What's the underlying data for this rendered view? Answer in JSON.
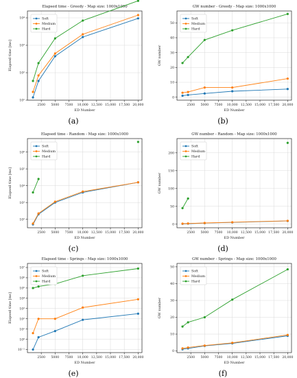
{
  "chart_data": [
    {
      "type": "line",
      "title": "Elapsed time - Greedy - Map size: 1000x1000",
      "xlabel": "ED Number",
      "ylabel": "Elapsed time [ms]",
      "yscale": "log",
      "xlim": [
        0,
        20700
      ],
      "ylim": [
        1.0,
        4.25
      ],
      "xticks": [
        2500,
        5000,
        7500,
        10000,
        12500,
        15000,
        17500,
        20000
      ],
      "xtick_labels": [
        "2500",
        "5000",
        "7500",
        "10,000",
        "12,500",
        "15,000",
        "17,500",
        "20,000"
      ],
      "yticks": [
        1,
        2,
        3,
        4
      ],
      "ytick_labels": [
        "10¹",
        "10²",
        "10³",
        "10⁴"
      ],
      "legend": "upper-left",
      "grid": true,
      "label": "(a)",
      "series": [
        {
          "name": "Soft",
          "color": "#1f77b4",
          "x": [
            1000,
            2000,
            5000,
            10000,
            20000
          ],
          "y": [
            1.1,
            1.7,
            2.6,
            3.3,
            3.98
          ]
        },
        {
          "name": "Medium",
          "color": "#ff7f0e",
          "x": [
            1000,
            2000,
            5000,
            10000,
            20000
          ],
          "y": [
            1.3,
            1.9,
            2.7,
            3.4,
            4.1
          ]
        },
        {
          "name": "Hard",
          "color": "#2ca02c",
          "x": [
            1000,
            2000,
            5000,
            10000,
            20000
          ],
          "y": [
            1.7,
            2.35,
            3.25,
            3.9,
            4.62
          ]
        }
      ]
    },
    {
      "type": "line",
      "title": "GW number - Greedy - Map size: 1000x1000",
      "xlabel": "ED Number",
      "ylabel": "GW number",
      "yscale": "linear",
      "xlim": [
        0,
        20700
      ],
      "ylim": [
        -2,
        58
      ],
      "xticks": [
        2500,
        5000,
        7500,
        10000,
        12500,
        15000,
        17500,
        20000
      ],
      "xtick_labels": [
        "2500",
        "5000",
        "7500",
        "10,000",
        "12,500",
        "15,000",
        "17,500",
        "20,000"
      ],
      "yticks": [
        0,
        10,
        20,
        30,
        40,
        50
      ],
      "ytick_labels": [
        "0",
        "10",
        "20",
        "30",
        "40",
        "50"
      ],
      "legend": "upper-left",
      "grid": true,
      "label": "(b)",
      "series": [
        {
          "name": "Soft",
          "color": "#1f77b4",
          "x": [
            1000,
            2000,
            5000,
            10000,
            20000
          ],
          "y": [
            1,
            1.5,
            2.5,
            4,
            5.5
          ]
        },
        {
          "name": "Medium",
          "color": "#ff7f0e",
          "x": [
            1000,
            2000,
            5000,
            10000,
            20000
          ],
          "y": [
            3,
            3.5,
            6.5,
            6.5,
            12.5
          ]
        },
        {
          "name": "Hard",
          "color": "#2ca02c",
          "x": [
            1000,
            2000,
            5000,
            10000,
            20000
          ],
          "y": [
            23,
            27,
            38.5,
            45,
            56
          ]
        }
      ]
    },
    {
      "type": "line",
      "title": "Elapsed time - Random - Map size: 1000x1000",
      "xlabel": "ED Number",
      "ylabel": "Elapsed time [ms]",
      "yscale": "log",
      "xlim": [
        0,
        20700
      ],
      "ylim": [
        1.5,
        6.8
      ],
      "xticks": [
        2500,
        5000,
        7500,
        10000,
        12500,
        15000,
        17500,
        20000
      ],
      "xtick_labels": [
        "2500",
        "5000",
        "7500",
        "10,000",
        "12,500",
        "15,000",
        "17,500",
        "20,000"
      ],
      "yticks": [
        2,
        3,
        4,
        5,
        6
      ],
      "ytick_labels": [
        "10²",
        "10³",
        "10⁴",
        "10⁵",
        "10⁶"
      ],
      "legend": "upper-left",
      "grid": true,
      "label": "(c)",
      "series": [
        {
          "name": "Soft",
          "color": "#1f77b4",
          "x": [
            1000,
            2000,
            5000,
            10000,
            20000
          ],
          "y": [
            1.7,
            2.3,
            3.0,
            3.6,
            4.2
          ]
        },
        {
          "name": "Medium",
          "color": "#ff7f0e",
          "x": [
            1000,
            2000,
            5000,
            10000,
            20000
          ],
          "y": [
            1.75,
            2.35,
            3.05,
            3.65,
            4.2
          ]
        },
        {
          "name": "Hard",
          "color": "#2ca02c",
          "x": [
            1000,
            2000,
            20000
          ],
          "y": [
            3.6,
            4.4,
            6.6
          ],
          "segments": [
            [
              0,
              1
            ]
          ]
        }
      ]
    },
    {
      "type": "line",
      "title": "GW number - Random - Map size: 1000x1000",
      "xlabel": "ED Number",
      "ylabel": "GW number",
      "yscale": "linear",
      "xlim": [
        0,
        20700
      ],
      "ylim": [
        -10,
        240
      ],
      "xticks": [
        2500,
        5000,
        7500,
        10000,
        12500,
        15000,
        17500,
        20000
      ],
      "xtick_labels": [
        "2500",
        "5000",
        "7500",
        "10,000",
        "12,500",
        "15,000",
        "17,500",
        "20,000"
      ],
      "yticks": [
        0,
        50,
        100,
        150,
        200
      ],
      "ytick_labels": [
        "0",
        "50",
        "100",
        "150",
        "200"
      ],
      "legend": "upper-left",
      "grid": true,
      "label": "(d)",
      "series": [
        {
          "name": "Soft",
          "color": "#1f77b4",
          "x": [
            1000,
            2000,
            5000,
            10000,
            20000
          ],
          "y": [
            1,
            1.5,
            3,
            5,
            9
          ]
        },
        {
          "name": "Medium",
          "color": "#ff7f0e",
          "x": [
            1000,
            2000,
            5000,
            10000,
            20000
          ],
          "y": [
            1.5,
            2,
            3.5,
            5.5,
            9.5
          ]
        },
        {
          "name": "Hard",
          "color": "#2ca02c",
          "x": [
            1000,
            2000,
            20000
          ],
          "y": [
            45,
            72,
            228
          ],
          "segments": [
            [
              0,
              1
            ]
          ]
        }
      ]
    },
    {
      "type": "line",
      "title": "Elapsed time - Springs - Map size: 1000x1000",
      "xlabel": "ED Number",
      "ylabel": "Elapsed time [ms]",
      "yscale": "log",
      "xlim": [
        0,
        20700
      ],
      "ylim": [
        -1.3,
        7.4
      ],
      "xticks": [
        2500,
        5000,
        7500,
        10000,
        12500,
        15000,
        17500,
        20000
      ],
      "xtick_labels": [
        "2500",
        "5000",
        "7500",
        "10,000",
        "12,500",
        "15,000",
        "17,500",
        "20,000"
      ],
      "yticks": [
        -1,
        0,
        1,
        2,
        3,
        4,
        5,
        6,
        7
      ],
      "ytick_labels": [
        "10⁻¹",
        "10⁰",
        "10¹",
        "10²",
        "10³",
        "10⁴",
        "10⁵",
        "10⁶",
        "10⁷"
      ],
      "legend": "upper-left",
      "grid": true,
      "label": "(e)",
      "series": [
        {
          "name": "Soft",
          "color": "#1f77b4",
          "x": [
            1000,
            2000,
            5000,
            10000,
            20000
          ],
          "y": [
            -1.0,
            0.2,
            0.8,
            1.9,
            2.5
          ]
        },
        {
          "name": "Medium",
          "color": "#ff7f0e",
          "x": [
            1000,
            2000,
            5000,
            10000,
            20000
          ],
          "y": [
            0.6,
            2.0,
            2.0,
            3.1,
            3.9
          ]
        },
        {
          "name": "Hard",
          "color": "#2ca02c",
          "x": [
            1000,
            2000,
            5000,
            10000,
            20000
          ],
          "y": [
            5.0,
            5.15,
            5.4,
            6.2,
            6.9
          ]
        }
      ]
    },
    {
      "type": "line",
      "title": "GW number - Springs - Map size: 1000x1000",
      "xlabel": "ED Number",
      "ylabel": "GW number",
      "yscale": "linear",
      "xlim": [
        0,
        20700
      ],
      "ylim": [
        -1,
        52
      ],
      "xticks": [
        2500,
        5000,
        7500,
        10000,
        12500,
        15000,
        17500,
        20000
      ],
      "xtick_labels": [
        "2500",
        "5000",
        "7500",
        "10,000",
        "12,500",
        "15,000",
        "17,500",
        "20,000"
      ],
      "yticks": [
        0,
        10,
        20,
        30,
        40,
        50
      ],
      "ytick_labels": [
        "0",
        "10",
        "20",
        "30",
        "40",
        "50"
      ],
      "legend": "upper-left",
      "grid": true,
      "label": "(f)",
      "series": [
        {
          "name": "Soft",
          "color": "#1f77b4",
          "x": [
            1000,
            2000,
            5000,
            10000,
            20000
          ],
          "y": [
            1,
            1.5,
            3,
            4.5,
            9
          ]
        },
        {
          "name": "Medium",
          "color": "#ff7f0e",
          "x": [
            1000,
            2000,
            5000,
            10000,
            20000
          ],
          "y": [
            1.5,
            2,
            3.2,
            4.8,
            9.5
          ]
        },
        {
          "name": "Hard",
          "color": "#2ca02c",
          "x": [
            1000,
            2000,
            5000,
            10000,
            20000
          ],
          "y": [
            14.5,
            17,
            20,
            30.5,
            48.5
          ]
        }
      ]
    }
  ]
}
